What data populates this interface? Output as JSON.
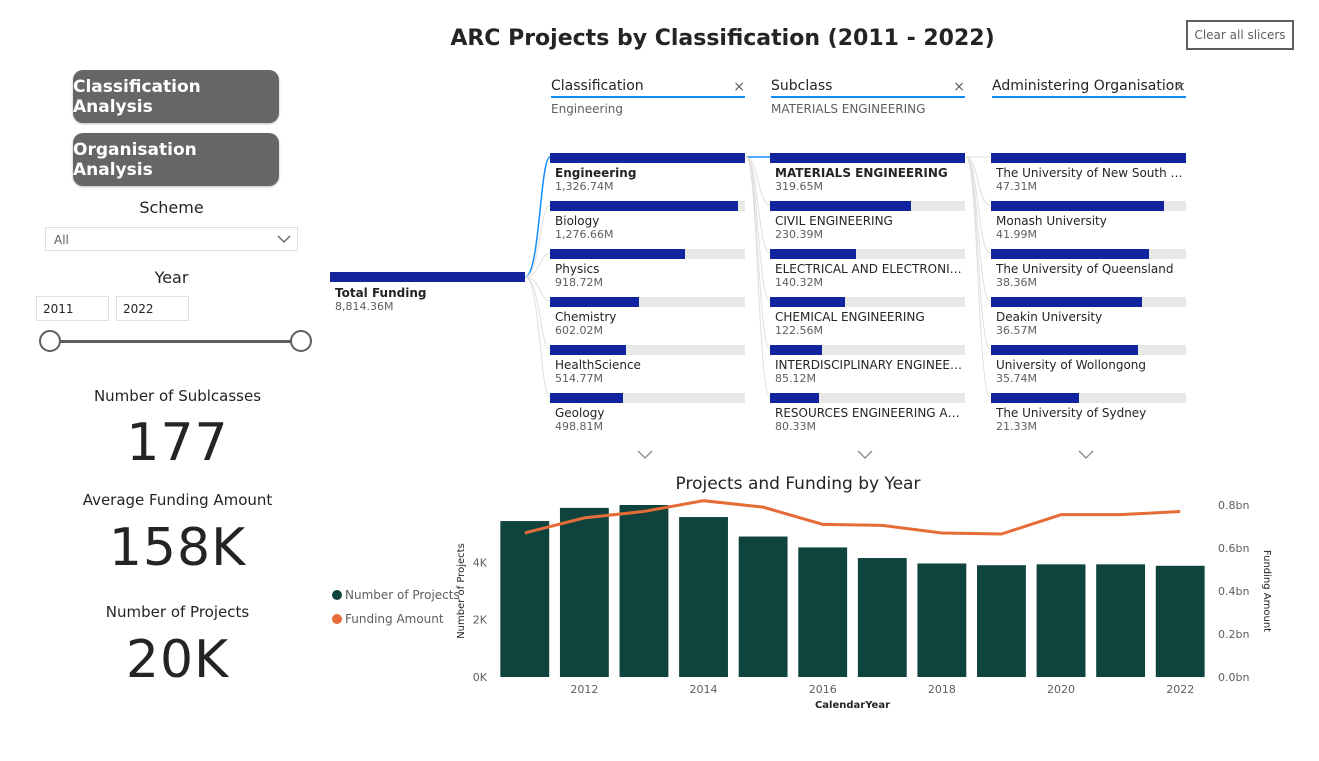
{
  "header": {
    "title": "ARC Projects by Classification (2011 - 2022)",
    "clear_button": "Clear all slicers"
  },
  "nav": {
    "classification_button": "Classification Analysis",
    "organisation_button": "Organisation Analysis"
  },
  "slicers": {
    "scheme_title": "Scheme",
    "scheme_value": "All",
    "year_title": "Year",
    "year_start": "2011",
    "year_end": "2022"
  },
  "kpis": {
    "subclasses_label": "Number of Sublcasses",
    "subclasses_value": "177",
    "avg_funding_label": "Average Funding Amount",
    "avg_funding_value": "158K",
    "projects_label": "Number of Projects",
    "projects_value": "20K"
  },
  "tree": {
    "root": {
      "label": "Total Funding",
      "value": "8,814.36M"
    },
    "columns": [
      {
        "header": "Classification",
        "filter": "Engineering",
        "nodes": [
          {
            "label": "Engineering",
            "value": "1,326.74M",
            "fraction": 1.0,
            "selected": true
          },
          {
            "label": "Biology",
            "value": "1,276.66M",
            "fraction": 0.962
          },
          {
            "label": "Physics",
            "value": "918.72M",
            "fraction": 0.692
          },
          {
            "label": "Chemistry",
            "value": "602.02M",
            "fraction": 0.454
          },
          {
            "label": "HealthScience",
            "value": "514.77M",
            "fraction": 0.388
          },
          {
            "label": "Geology",
            "value": "498.81M",
            "fraction": 0.376
          }
        ]
      },
      {
        "header": "Subclass",
        "filter": "MATERIALS ENGINEERING",
        "nodes": [
          {
            "label": "MATERIALS ENGINEERING",
            "value": "319.65M",
            "fraction": 1.0,
            "selected": true
          },
          {
            "label": "CIVIL ENGINEERING",
            "value": "230.39M",
            "fraction": 0.721
          },
          {
            "label": "ELECTRICAL AND ELECTRONIC EN...",
            "value": "140.32M",
            "fraction": 0.439
          },
          {
            "label": "CHEMICAL ENGINEERING",
            "value": "122.56M",
            "fraction": 0.383
          },
          {
            "label": "INTERDISCIPLINARY ENGINEERING",
            "value": "85.12M",
            "fraction": 0.266
          },
          {
            "label": "RESOURCES ENGINEERING AND E...",
            "value": "80.33M",
            "fraction": 0.251
          }
        ]
      },
      {
        "header": "Administering Organisation",
        "filter": "",
        "nodes": [
          {
            "label": "The University of New South Wales",
            "value": "47.31M",
            "fraction": 1.0
          },
          {
            "label": "Monash University",
            "value": "41.99M",
            "fraction": 0.888
          },
          {
            "label": "The University of Queensland",
            "value": "38.36M",
            "fraction": 0.811
          },
          {
            "label": "Deakin University",
            "value": "36.57M",
            "fraction": 0.773
          },
          {
            "label": "University of Wollongong",
            "value": "35.74M",
            "fraction": 0.755
          },
          {
            "label": "The University of Sydney",
            "value": "21.33M",
            "fraction": 0.451
          }
        ]
      }
    ]
  },
  "chart_data": {
    "type": "bar",
    "title": "Projects and Funding by Year",
    "xlabel": "CalendarYear",
    "ylabel": "Number of Projects",
    "y2label": "Funding Amount",
    "x": [
      2011,
      2012,
      2013,
      2014,
      2015,
      2016,
      2017,
      2018,
      2019,
      2020,
      2021,
      2022
    ],
    "x_tick_labels": [
      "2012",
      "2014",
      "2016",
      "2018",
      "2020",
      "2022"
    ],
    "y_ticks": [
      "0K",
      "2K",
      "4K"
    ],
    "y2_ticks": [
      "0.0bn",
      "0.2bn",
      "0.4bn",
      "0.6bn",
      "0.8bn"
    ],
    "ylim": [
      0,
      6000
    ],
    "y2lim": [
      0,
      0.8
    ],
    "series": [
      {
        "name": "Number of Projects",
        "type": "bar",
        "color": "#0f433e",
        "values": [
          5440,
          5900,
          6000,
          5580,
          4900,
          4520,
          4150,
          3960,
          3900,
          3930,
          3930,
          3880
        ]
      },
      {
        "name": "Funding Amount",
        "type": "line",
        "color": "#e66c37",
        "values": [
          0.67,
          0.74,
          0.77,
          0.82,
          0.79,
          0.71,
          0.705,
          0.67,
          0.665,
          0.755,
          0.755,
          0.77
        ]
      }
    ],
    "legend_position": "left"
  }
}
